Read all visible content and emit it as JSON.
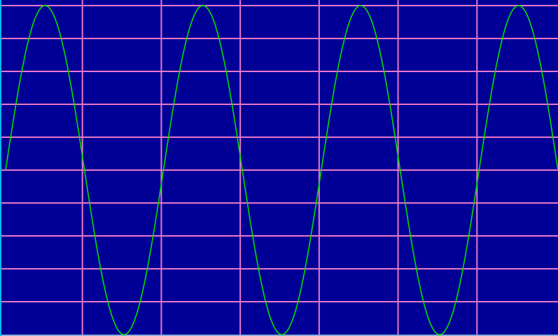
{
  "chart_data": {
    "type": "line",
    "title": "",
    "xlabel": "",
    "ylabel": "",
    "series": [
      {
        "function": "sine",
        "amplitude": 1.0,
        "cycles": 3.5,
        "phase_start": 0.0,
        "sample_count": 800
      }
    ],
    "xlim": [
      0,
      7
    ],
    "ylim": [
      -1.0,
      1.0
    ],
    "grid": true,
    "grid_divisions_x": 7,
    "grid_divisions_y": 10,
    "legend": "none",
    "colors": {
      "background": "#000096",
      "grid": "#e878c8",
      "trace": "#00e000",
      "left_edge": "#00b8f0",
      "baseline": "#8fb0e0"
    }
  }
}
